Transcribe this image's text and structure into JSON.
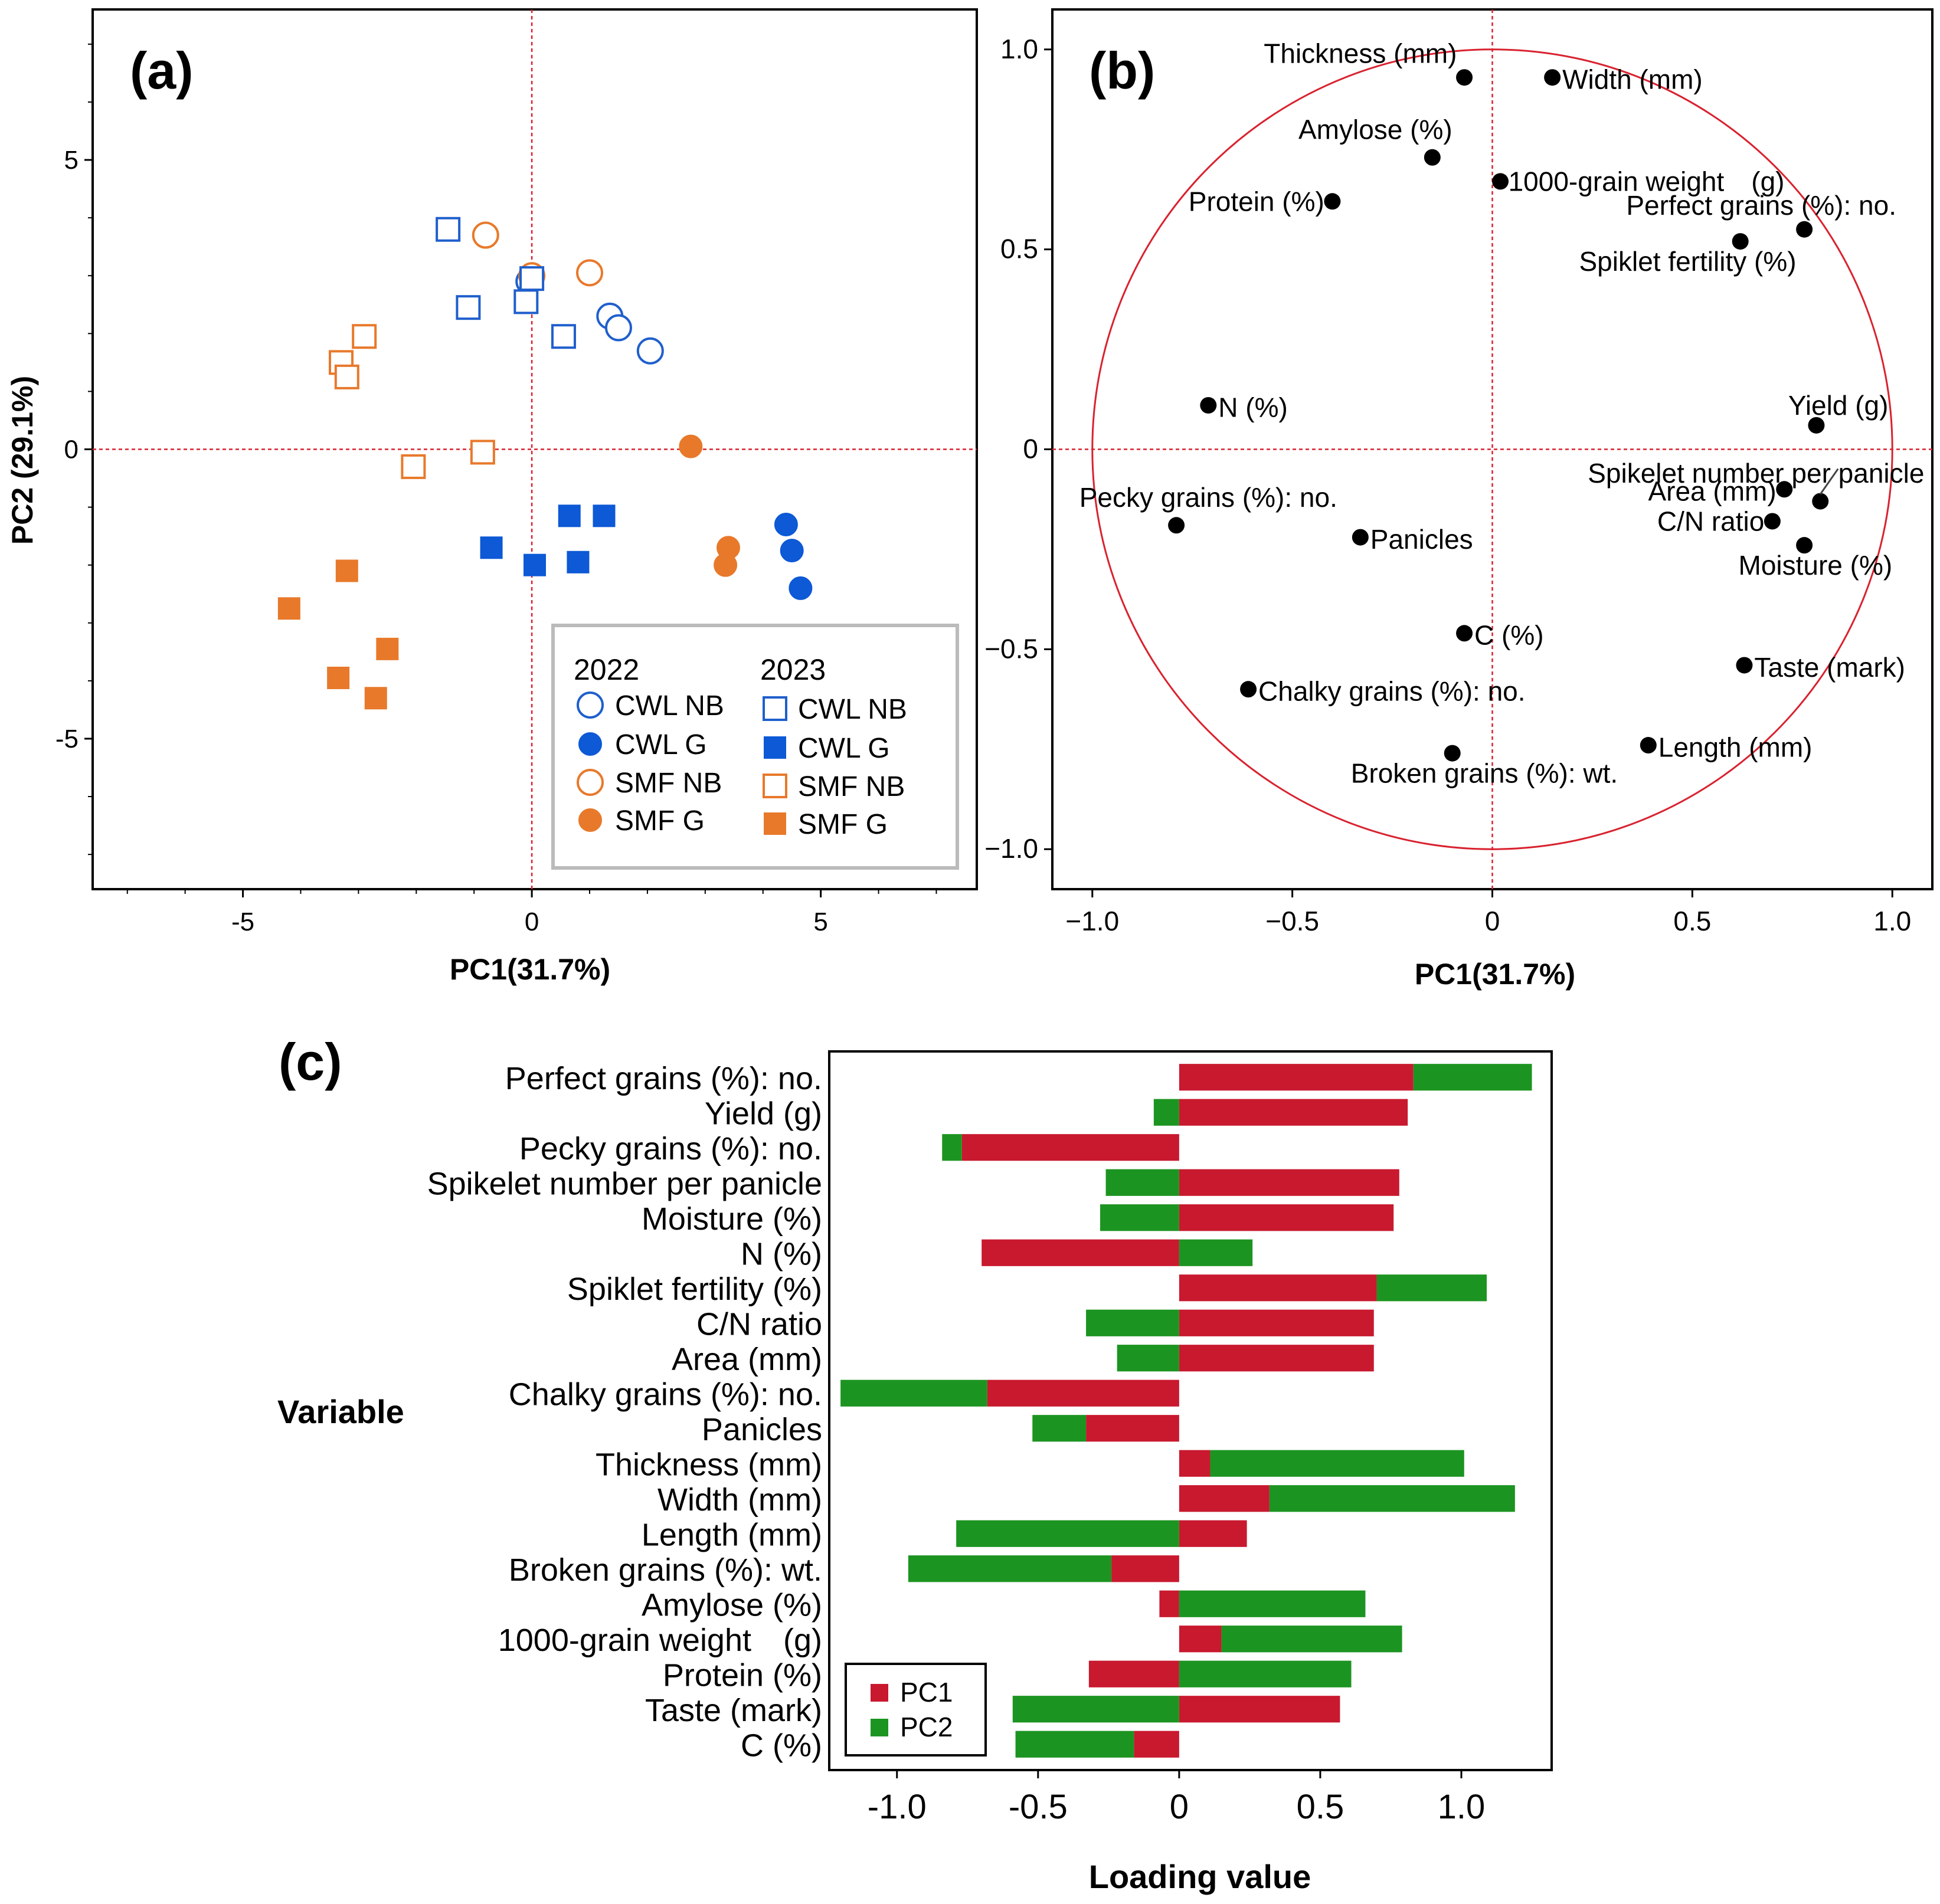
{
  "colors": {
    "cwl": "#1f5fcc",
    "cwl_filled": "#0d59d6",
    "smf": "#e8792b",
    "circle": "#d9222f",
    "pc1": "#c8192f",
    "pc2": "#1c9421",
    "refline": "#d9222f"
  },
  "chart_data": [
    {
      "panel": "(a)",
      "type": "scatter",
      "xlabel": "PC1(31.7%)",
      "ylabel": "PC2 (29.1%)",
      "xlim": [
        -7.6,
        7.7
      ],
      "ylim": [
        -7.6,
        7.6
      ],
      "xticks": [
        -5,
        0,
        5
      ],
      "yticks": [
        5,
        0,
        -5
      ],
      "xtick_labels": [
        "-5",
        "0",
        "5"
      ],
      "ytick_labels": [
        "5",
        "0",
        "-5"
      ],
      "legend": {
        "year_2022": "2022",
        "year_2023": "2023",
        "entries_2022": [
          {
            "label": "CWL NB",
            "group": "CWL",
            "fill": false,
            "shape": "circle"
          },
          {
            "label": "CWL G",
            "group": "CWL",
            "fill": true,
            "shape": "circle"
          },
          {
            "label": "SMF NB",
            "group": "SMF",
            "fill": false,
            "shape": "circle"
          },
          {
            "label": "SMF G",
            "group": "SMF",
            "fill": true,
            "shape": "circle"
          }
        ],
        "entries_2023": [
          {
            "label": "CWL NB",
            "group": "CWL",
            "fill": false,
            "shape": "square"
          },
          {
            "label": "CWL G",
            "group": "CWL",
            "fill": true,
            "shape": "square"
          },
          {
            "label": "SMF NB",
            "group": "SMF",
            "fill": false,
            "shape": "square"
          },
          {
            "label": "SMF G",
            "group": "SMF",
            "fill": true,
            "shape": "square"
          }
        ]
      },
      "series": [
        {
          "name": "2022 CWL NB",
          "group": "CWL",
          "fill": false,
          "shape": "circle",
          "x": [
            -0.05,
            1.35,
            1.5,
            2.05
          ],
          "y": [
            2.9,
            2.3,
            2.1,
            1.7
          ]
        },
        {
          "name": "2022 CWL G",
          "group": "CWL",
          "fill": true,
          "shape": "circle",
          "x": [
            4.4,
            4.5,
            4.65
          ],
          "y": [
            -1.3,
            -1.75,
            -2.4
          ]
        },
        {
          "name": "2022 SMF NB",
          "group": "SMF",
          "fill": false,
          "shape": "circle",
          "x": [
            -0.8,
            0.0,
            1.0
          ],
          "y": [
            3.7,
            3.0,
            3.05
          ]
        },
        {
          "name": "2022 SMF G",
          "group": "SMF",
          "fill": true,
          "shape": "circle",
          "x": [
            2.75,
            3.4,
            3.35
          ],
          "y": [
            0.05,
            -1.7,
            -2.0
          ]
        },
        {
          "name": "2023 CWL NB",
          "group": "CWL",
          "fill": false,
          "shape": "square",
          "x": [
            -1.45,
            -1.1,
            -0.1,
            0.0,
            0.55
          ],
          "y": [
            3.8,
            2.45,
            2.55,
            2.95,
            1.95
          ]
        },
        {
          "name": "2023 CWL G",
          "group": "CWL",
          "fill": true,
          "shape": "square",
          "x": [
            -0.7,
            0.05,
            0.65,
            0.8,
            1.25
          ],
          "y": [
            -1.7,
            -2.0,
            -1.15,
            -1.95,
            -1.15
          ]
        },
        {
          "name": "2023 SMF NB",
          "group": "SMF",
          "fill": false,
          "shape": "square",
          "x": [
            -3.3,
            -2.9,
            -3.2,
            -2.05,
            -0.85
          ],
          "y": [
            1.5,
            1.95,
            1.25,
            -0.3,
            -0.05
          ]
        },
        {
          "name": "2023 SMF G",
          "group": "SMF",
          "fill": true,
          "shape": "square",
          "x": [
            -4.2,
            -3.2,
            -3.35,
            -2.5,
            -2.7
          ],
          "y": [
            -2.75,
            -2.1,
            -3.95,
            -3.45,
            -4.3
          ]
        }
      ]
    },
    {
      "panel": "(b)",
      "type": "scatter",
      "xlabel": "PC1(31.7%)",
      "xlim": [
        -1.1,
        1.1
      ],
      "ylim": [
        -1.1,
        1.1
      ],
      "xticks": [
        -1.0,
        -0.5,
        0,
        0.5,
        1.0
      ],
      "yticks": [
        1.0,
        0.5,
        0,
        -0.5,
        -1.0
      ],
      "xtick_labels": [
        "−1.0",
        "−0.5",
        "0",
        "0.5",
        "1.0"
      ],
      "ytick_labels": [
        "1.0",
        "0.5",
        "0",
        "−0.5",
        "−1.0"
      ],
      "points": [
        {
          "label": "Thickness (mm)",
          "x": -0.07,
          "y": 0.93,
          "anchor": "middle",
          "dx": -0.26,
          "dy": 0.06
        },
        {
          "label": "Width (mm)",
          "x": 0.15,
          "y": 0.93,
          "anchor": "start",
          "dx": 0.025,
          "dy": -0.005
        },
        {
          "label": "Amylose (%)",
          "x": -0.15,
          "y": 0.73,
          "anchor": "end",
          "dx": 0.05,
          "dy": 0.07
        },
        {
          "label": "1000-grain weight　(g)",
          "x": 0.02,
          "y": 0.67,
          "anchor": "start",
          "dx": 0.02,
          "dy": 0.0
        },
        {
          "label": "Protein (%)",
          "x": -0.4,
          "y": 0.62,
          "anchor": "end",
          "dx": -0.02,
          "dy": 0.0
        },
        {
          "label": "Perfect grains (%): no.",
          "x": 0.78,
          "y": 0.55,
          "anchor": "end",
          "dx": 0.23,
          "dy": 0.06
        },
        {
          "label": "Spiklet fertility (%)",
          "x": 0.62,
          "y": 0.52,
          "anchor": "end",
          "dx": 0.14,
          "dy": -0.05
        },
        {
          "label": "N (%)",
          "x": -0.71,
          "y": 0.11,
          "anchor": "start",
          "dx": 0.025,
          "dy": -0.005
        },
        {
          "label": "Yield (g)",
          "x": 0.81,
          "y": 0.06,
          "anchor": "end",
          "dx": 0.18,
          "dy": 0.05
        },
        {
          "label": "Spikelet number per panicle",
          "x": 0.82,
          "y": -0.13,
          "anchor": "end",
          "dx": 0.26,
          "dy": 0.07
        },
        {
          "label": "Area (mm)",
          "x": 0.73,
          "y": -0.1,
          "anchor": "end",
          "dx": -0.02,
          "dy": -0.005
        },
        {
          "label": "Pecky grains (%): no.",
          "x": -0.79,
          "y": -0.19,
          "anchor": "middle",
          "dx": 0.08,
          "dy": 0.07
        },
        {
          "label": "C/N ratio",
          "x": 0.7,
          "y": -0.18,
          "anchor": "end",
          "dx": -0.02,
          "dy": 0.0
        },
        {
          "label": "Panicles",
          "x": -0.33,
          "y": -0.22,
          "anchor": "start",
          "dx": 0.025,
          "dy": -0.005
        },
        {
          "label": "Moisture (%)",
          "x": 0.78,
          "y": -0.24,
          "anchor": "end",
          "dx": 0.22,
          "dy": -0.05
        },
        {
          "label": "C (%)",
          "x": -0.07,
          "y": -0.46,
          "anchor": "start",
          "dx": 0.025,
          "dy": -0.005
        },
        {
          "label": "Taste (mark)",
          "x": 0.63,
          "y": -0.54,
          "anchor": "start",
          "dx": 0.025,
          "dy": -0.005
        },
        {
          "label": "Chalky grains (%): no.",
          "x": -0.61,
          "y": -0.6,
          "anchor": "start",
          "dx": 0.025,
          "dy": -0.005
        },
        {
          "label": "Length (mm)",
          "x": 0.39,
          "y": -0.74,
          "anchor": "start",
          "dx": 0.025,
          "dy": -0.005
        },
        {
          "label": "Broken grains (%): wt.",
          "x": -0.1,
          "y": -0.76,
          "anchor": "middle",
          "dx": 0.08,
          "dy": -0.05
        }
      ]
    },
    {
      "panel": "(c)",
      "type": "bar",
      "orientation": "horizontal",
      "xlabel": "Loading value",
      "ylabel": "Variable",
      "xlim": [
        -1.24,
        1.32
      ],
      "xticks": [
        -1.0,
        -0.5,
        0,
        0.5,
        1.0
      ],
      "xtick_labels": [
        "-1.0",
        "-0.5",
        "0",
        "0.5",
        "1.0"
      ],
      "legend": [
        "PC1",
        "PC2"
      ],
      "categories": [
        "Perfect grains (%): no.",
        "Yield (g)",
        "Pecky grains (%): no.",
        "Spikelet number per panicle",
        "Moisture (%)",
        "N (%)",
        "Spiklet fertility (%)",
        "C/N ratio",
        "Area (mm)",
        "Chalky grains (%): no.",
        "Panicles",
        "Thickness (mm)",
        "Width (mm)",
        "Length (mm)",
        "Broken grains (%): wt.",
        "Amylose (%)",
        "1000-grain weight　(g)",
        "Protein (%)",
        "Taste (mark)",
        "C (%)"
      ],
      "series": [
        {
          "name": "PC1",
          "values": [
            0.83,
            0.81,
            -0.77,
            0.78,
            0.76,
            -0.7,
            0.7,
            0.69,
            0.69,
            -0.68,
            -0.33,
            0.11,
            0.32,
            0.24,
            -0.24,
            -0.07,
            0.15,
            -0.32,
            0.57,
            -0.16
          ]
        },
        {
          "name": "PC2",
          "values": [
            0.42,
            -0.09,
            -0.07,
            -0.26,
            -0.28,
            0.26,
            0.39,
            -0.33,
            -0.22,
            -0.52,
            -0.19,
            0.9,
            0.87,
            -0.79,
            -0.72,
            0.66,
            0.64,
            0.61,
            -0.59,
            -0.42
          ]
        }
      ]
    }
  ]
}
